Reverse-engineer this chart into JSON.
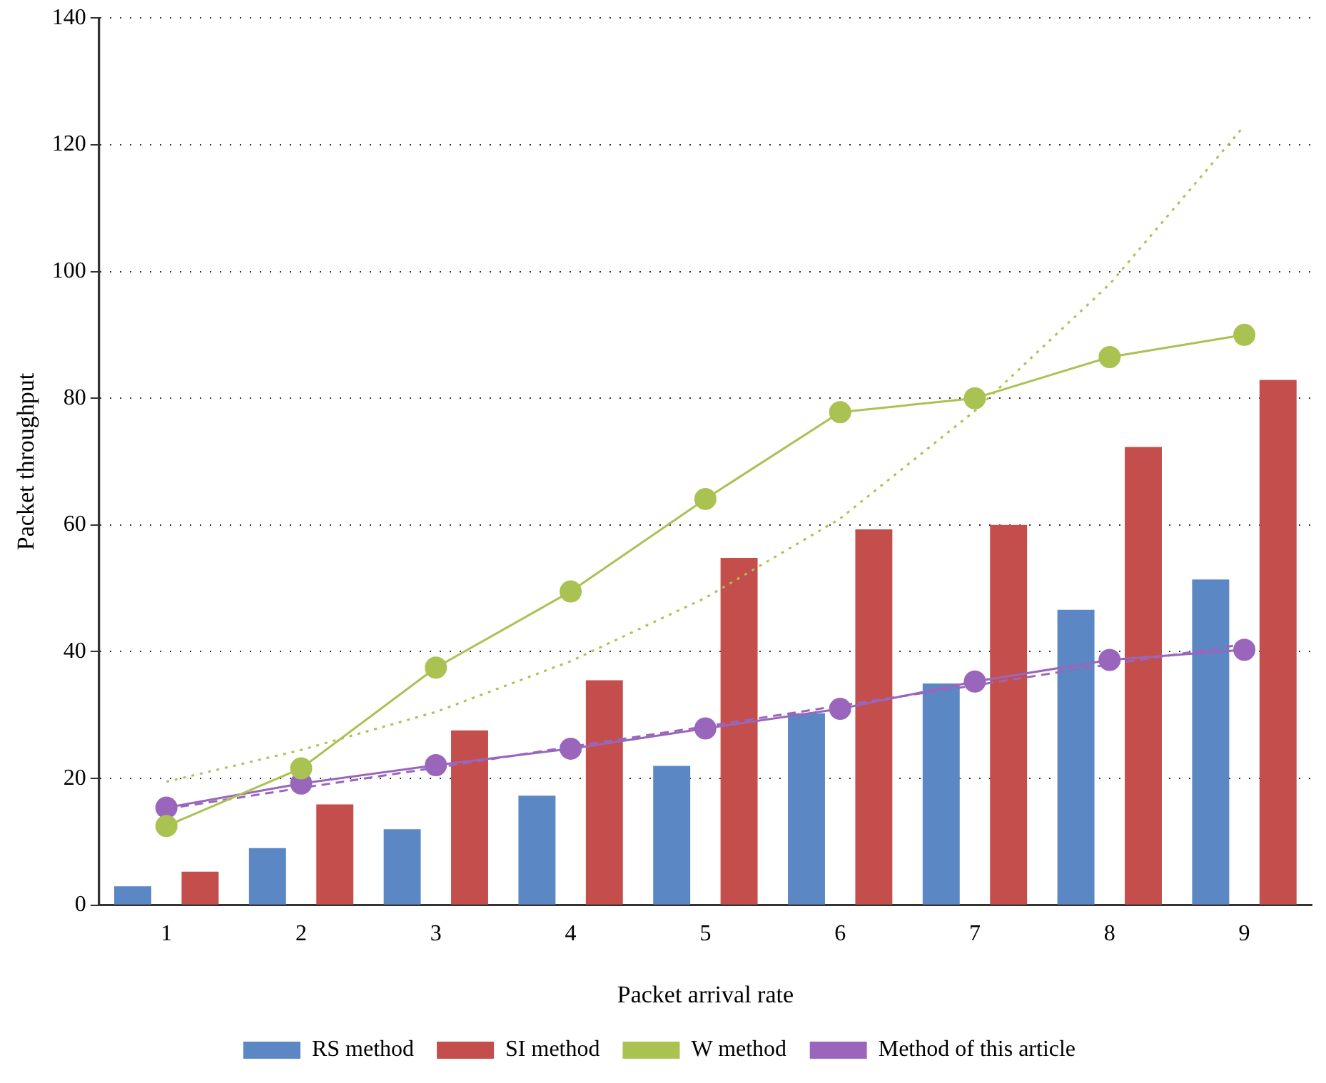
{
  "chart_data": {
    "type": "bar",
    "xlabel": "Packet arrival rate",
    "ylabel": "Packet throughput",
    "categories": [
      "1",
      "2",
      "3",
      "4",
      "5",
      "6",
      "7",
      "8",
      "9"
    ],
    "series": [
      {
        "name": "RS method",
        "color": "#5b87c5",
        "values": [
          3,
          9,
          12,
          17.3,
          22,
          30.3,
          35,
          46.6,
          51.4
        ]
      },
      {
        "name": "SI method",
        "color": "#c44e4b",
        "values": [
          5.3,
          15.9,
          27.6,
          35.5,
          54.8,
          59.3,
          60,
          72.3,
          82.9
        ]
      },
      {
        "name": "W method",
        "type": "line",
        "color": "#a9c251",
        "marker": "circle",
        "values": [
          12.5,
          21.6,
          37.5,
          49.5,
          64.1,
          77.8,
          80,
          86.5,
          90
        ]
      },
      {
        "name": "Method of this article",
        "type": "line",
        "color": "#9966bb",
        "marker": "circle",
        "values": [
          15.4,
          19.2,
          22.1,
          24.7,
          27.9,
          31,
          35.3,
          38.7,
          40.3
        ]
      },
      {
        "type": "line",
        "color": "#a9c251",
        "marker": "none",
        "line_style": "dotted",
        "values": [
          19.5,
          24.5,
          30.5,
          38.5,
          48.5,
          61,
          78,
          98,
          123
        ]
      },
      {
        "type": "line",
        "color": "#9966bb",
        "marker": "none",
        "line_style": "dashed",
        "values": [
          15.2,
          18.5,
          21.7,
          25,
          28.2,
          31.5,
          34.7,
          38,
          41.2
        ]
      }
    ],
    "ylim": [
      0,
      140
    ],
    "yticks": [
      0,
      20,
      40,
      60,
      80,
      100,
      120,
      140
    ],
    "grid": "y",
    "legend": "bottom"
  }
}
